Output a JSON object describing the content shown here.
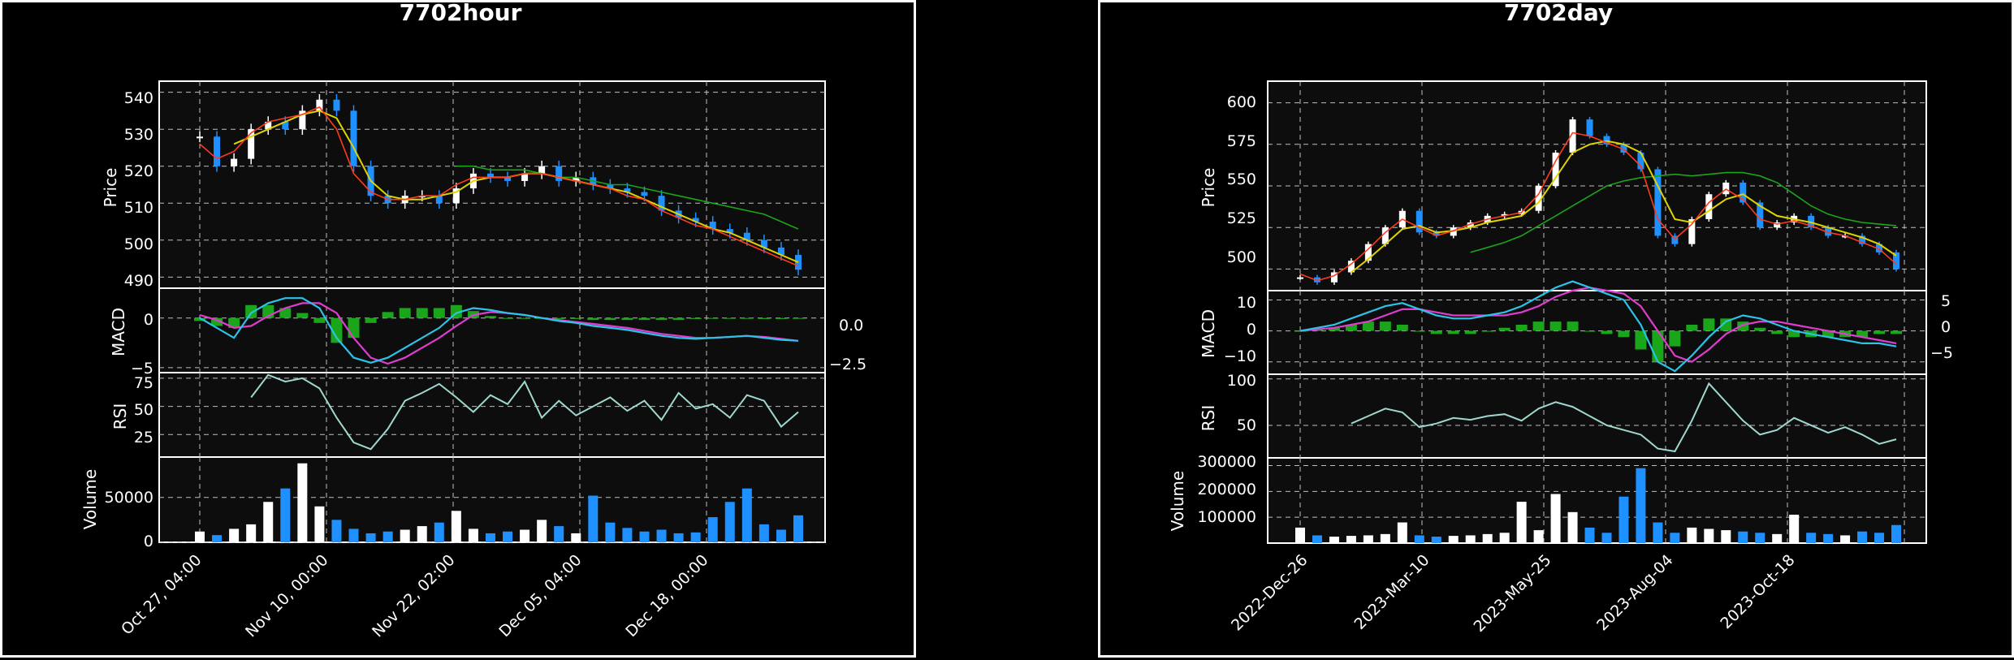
{
  "figures": [
    {
      "id": "hour",
      "title": "7702hour",
      "price_ylabel": "Price",
      "macd_ylabel": "MACD",
      "rsi_ylabel": "RSI",
      "volume_ylabel": "Volume",
      "x_tick_labels": [
        "Oct 27, 04:00",
        "Nov 10, 00:00",
        "Nov 22, 02:00",
        "Dec 05, 04:00",
        "Dec 18, 00:00"
      ],
      "price_ticks": [
        "540",
        "530",
        "520",
        "510",
        "500",
        "490"
      ],
      "macd_left_ticks": [
        "0",
        "−5"
      ],
      "macd_right_ticks": [
        "0.0",
        "−2.5"
      ],
      "rsi_ticks": [
        "75",
        "50",
        "25"
      ],
      "volume_ticks": [
        "50000",
        "0"
      ]
    },
    {
      "id": "day",
      "title": "7702day",
      "price_ylabel": "Price",
      "macd_ylabel": "MACD",
      "rsi_ylabel": "RSI",
      "volume_ylabel": "Volume",
      "x_tick_labels": [
        "2022-Dec-26",
        "2023-Mar-10",
        "2023-May-25",
        "2023-Aug-04",
        "2023-Oct-18"
      ],
      "price_ticks": [
        "600",
        "575",
        "550",
        "525",
        "500"
      ],
      "macd_left_ticks": [
        "10",
        "0",
        "−10"
      ],
      "macd_right_ticks": [
        "5",
        "0",
        "−5"
      ],
      "rsi_ticks": [
        "100",
        "50"
      ],
      "volume_ticks": [
        "300000",
        "200000",
        "100000"
      ]
    }
  ],
  "colors": {
    "background": "#000000",
    "panel": "#0d0d0d",
    "grid": "#bfbfbf",
    "candle_up": "#ffffff",
    "candle_down": "#1e90ff",
    "ma_short": "#ff3b1f",
    "ma_mid": "#e0d400",
    "ma_long": "#1aa51a",
    "macd_line": "#2cc3e6",
    "signal_line": "#e03cd0",
    "macd_hist": "#1aa51a",
    "rsi_line": "#9fd8cf"
  },
  "chart_data": [
    {
      "type": "candlestick",
      "title": "7702hour",
      "x_axis": "time (hourly bars)",
      "x_ticks": [
        "Oct 27, 04:00",
        "Nov 10, 00:00",
        "Nov 22, 02:00",
        "Dec 05, 04:00",
        "Dec 18, 00:00"
      ],
      "price": {
        "ylabel": "Price",
        "ylim": [
          487,
          543
        ],
        "close": [
          528,
          520,
          522,
          530,
          532,
          530,
          535,
          538,
          535,
          520,
          512,
          510,
          512,
          512,
          510,
          514,
          518,
          517,
          516,
          518,
          520,
          516,
          517,
          515,
          514,
          513,
          512,
          508,
          506,
          505,
          503,
          502,
          500,
          498,
          496,
          492
        ],
        "ma_short": [
          526,
          522,
          524,
          529,
          532,
          533,
          534,
          536,
          530,
          518,
          513,
          511,
          511,
          512,
          512,
          515,
          517,
          517,
          517,
          518,
          518,
          517,
          516,
          515,
          514,
          512,
          511,
          508,
          506,
          504,
          503,
          501,
          499,
          497,
          495,
          493
        ],
        "ma_mid": [
          null,
          null,
          526,
          528,
          530,
          532,
          534,
          535,
          533,
          525,
          516,
          512,
          511,
          511,
          512,
          513,
          516,
          517,
          517,
          518,
          518,
          517,
          516,
          515,
          514,
          513,
          511,
          509,
          507,
          505,
          503,
          502,
          500,
          498,
          496,
          494
        ],
        "ma_long": [
          null,
          null,
          null,
          null,
          null,
          null,
          null,
          null,
          null,
          null,
          null,
          null,
          null,
          null,
          null,
          520,
          520,
          519,
          519,
          519,
          518,
          517,
          517,
          516,
          515,
          515,
          514,
          513,
          512,
          511,
          510,
          509,
          508,
          507,
          505,
          503
        ]
      },
      "macd": {
        "ylabel": "MACD",
        "ylim": [
          -5.5,
          3
        ],
        "macd": [
          0,
          -1,
          -2,
          0.5,
          1.5,
          2,
          2,
          1,
          -2,
          -4,
          -4.5,
          -4,
          -3,
          -2,
          -1,
          0.5,
          1,
          0.8,
          0.5,
          0.3,
          0,
          -0.3,
          -0.5,
          -0.8,
          -1,
          -1.2,
          -1.5,
          -1.8,
          -2,
          -2.1,
          -2,
          -1.9,
          -1.8,
          -2,
          -2.2,
          -2.3
        ],
        "signal": [
          0.3,
          -0.2,
          -1,
          -0.8,
          0.2,
          1,
          1.5,
          1.5,
          0.5,
          -2,
          -4,
          -4.6,
          -4,
          -3,
          -2,
          -0.8,
          0.3,
          0.6,
          0.5,
          0.3,
          0,
          -0.2,
          -0.4,
          -0.6,
          -0.8,
          -1,
          -1.3,
          -1.6,
          -1.8,
          -2,
          -2,
          -1.9,
          -1.8,
          -1.9,
          -2.1,
          -2.3
        ]
      },
      "rsi": {
        "ylabel": "RSI",
        "ylim": [
          5,
          80
        ],
        "start_index": 3,
        "values": [
          null,
          null,
          null,
          58,
          78,
          72,
          75,
          66,
          40,
          18,
          12,
          30,
          55,
          62,
          70,
          58,
          45,
          60,
          52,
          72,
          40,
          55,
          42,
          50,
          58,
          46,
          55,
          38,
          62,
          48,
          52,
          40,
          60,
          55,
          32,
          45
        ]
      },
      "volume": {
        "ylabel": "Volume",
        "ylim": [
          0,
          95000
        ],
        "values": [
          12000,
          8000,
          15000,
          20000,
          45000,
          60000,
          88000,
          40000,
          25000,
          15000,
          10000,
          12000,
          14000,
          18000,
          22000,
          35000,
          15000,
          10000,
          12000,
          14000,
          25000,
          18000,
          10000,
          52000,
          22000,
          16000,
          12000,
          14000,
          10000,
          11000,
          28000,
          45000,
          60000,
          20000,
          14000,
          30000
        ]
      }
    },
    {
      "type": "candlestick",
      "title": "7702day",
      "x_axis": "date (daily bars)",
      "x_ticks": [
        "2022-Dec-26",
        "2023-Mar-10",
        "2023-May-25",
        "2023-Aug-04",
        "2023-Oct-18"
      ],
      "price": {
        "ylabel": "Price",
        "ylim": [
          487,
          613
        ],
        "close": [
          495,
          492,
          498,
          505,
          515,
          525,
          535,
          522,
          520,
          525,
          528,
          532,
          533,
          535,
          550,
          570,
          590,
          580,
          575,
          570,
          560,
          520,
          515,
          530,
          545,
          552,
          540,
          525,
          528,
          532,
          525,
          520,
          520,
          515,
          510,
          500
        ],
        "ma_short": [
          497,
          493,
          496,
          503,
          512,
          522,
          530,
          525,
          520,
          523,
          527,
          530,
          532,
          534,
          545,
          565,
          582,
          580,
          576,
          572,
          562,
          530,
          518,
          527,
          540,
          548,
          542,
          530,
          527,
          529,
          526,
          522,
          520,
          516,
          512,
          503
        ],
        "ma_mid": [
          null,
          null,
          null,
          498,
          506,
          515,
          524,
          526,
          522,
          523,
          525,
          528,
          530,
          532,
          540,
          555,
          570,
          575,
          577,
          575,
          570,
          550,
          530,
          528,
          535,
          542,
          545,
          538,
          532,
          530,
          528,
          525,
          522,
          519,
          515,
          508
        ],
        "ma_long": [
          null,
          null,
          null,
          null,
          null,
          null,
          null,
          null,
          null,
          null,
          510,
          513,
          516,
          520,
          526,
          532,
          538,
          544,
          550,
          553,
          555,
          556,
          557,
          556,
          557,
          558,
          558,
          556,
          552,
          545,
          538,
          533,
          530,
          528,
          527,
          526
        ]
      },
      "macd": {
        "ylabel": "MACD",
        "ylim": [
          -14,
          13
        ],
        "macd": [
          0,
          1,
          2,
          4,
          6,
          8,
          9,
          7,
          5,
          4,
          4,
          5,
          6,
          8,
          11,
          14,
          16,
          14,
          12,
          10,
          2,
          -10,
          -13,
          -8,
          -2,
          3,
          5,
          4,
          2,
          0,
          -1,
          -2,
          -3,
          -4,
          -4,
          -5
        ],
        "signal": [
          0,
          0.5,
          1,
          2,
          3,
          5,
          7,
          7,
          6,
          5,
          5,
          5,
          5,
          6,
          8,
          11,
          13,
          14,
          13,
          12,
          8,
          0,
          -8,
          -10,
          -6,
          -1,
          2,
          3,
          3,
          2,
          1,
          0,
          -1,
          -2,
          -3,
          -4
        ]
      },
      "rsi": {
        "ylabel": "RSI",
        "ylim": [
          15,
          105
        ],
        "start_index": 3,
        "values": [
          null,
          null,
          null,
          52,
          60,
          68,
          64,
          48,
          52,
          58,
          56,
          60,
          62,
          55,
          68,
          75,
          70,
          60,
          50,
          45,
          40,
          25,
          22,
          55,
          95,
          75,
          55,
          40,
          45,
          58,
          50,
          42,
          48,
          40,
          30,
          35
        ]
      },
      "volume": {
        "ylabel": "Volume",
        "ylim": [
          0,
          330000
        ],
        "values": [
          60000,
          30000,
          25000,
          28000,
          30000,
          35000,
          80000,
          30000,
          25000,
          28000,
          30000,
          35000,
          40000,
          160000,
          50000,
          190000,
          120000,
          60000,
          40000,
          180000,
          290000,
          80000,
          40000,
          60000,
          55000,
          50000,
          45000,
          40000,
          35000,
          110000,
          40000,
          35000,
          30000,
          45000,
          40000,
          70000
        ]
      }
    }
  ]
}
